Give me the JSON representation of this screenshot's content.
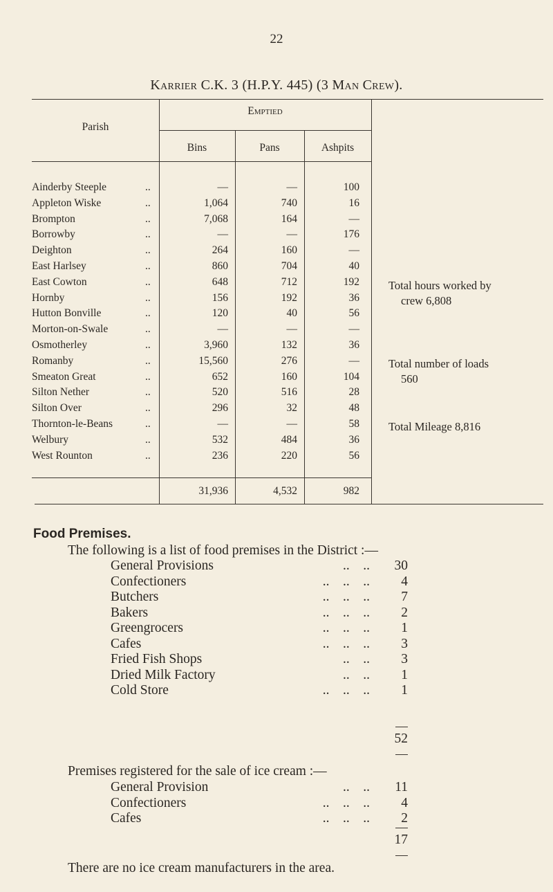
{
  "page_number": "22",
  "title": "Karrier C.K. 3 (H.P.Y. 445) (3 Man Crew).",
  "table": {
    "headers": {
      "parish": "Parish",
      "emptied": "Emptied",
      "bins": "Bins",
      "pans": "Pans",
      "ashpits": "Ashpits"
    },
    "rows": [
      {
        "parish": "Ainderby Steeple",
        "bins": "—",
        "pans": "—",
        "ashpits": "100"
      },
      {
        "parish": "Appleton Wiske",
        "bins": "1,064",
        "pans": "740",
        "ashpits": "16"
      },
      {
        "parish": "Brompton",
        "bins": "7,068",
        "pans": "164",
        "ashpits": "—"
      },
      {
        "parish": "Borrowby",
        "bins": "—",
        "pans": "—",
        "ashpits": "176"
      },
      {
        "parish": "Deighton",
        "bins": "264",
        "pans": "160",
        "ashpits": "—"
      },
      {
        "parish": "East Harlsey",
        "bins": "860",
        "pans": "704",
        "ashpits": "40"
      },
      {
        "parish": "East Cowton",
        "bins": "648",
        "pans": "712",
        "ashpits": "192"
      },
      {
        "parish": "Hornby",
        "bins": "156",
        "pans": "192",
        "ashpits": "36"
      },
      {
        "parish": "Hutton Bonville",
        "bins": "120",
        "pans": "40",
        "ashpits": "56"
      },
      {
        "parish": "Morton-on-Swale",
        "bins": "—",
        "pans": "—",
        "ashpits": "—"
      },
      {
        "parish": "Osmotherley",
        "bins": "3,960",
        "pans": "132",
        "ashpits": "36"
      },
      {
        "parish": "Romanby",
        "bins": "15,560",
        "pans": "276",
        "ashpits": "—"
      },
      {
        "parish": "Smeaton Great",
        "bins": "652",
        "pans": "160",
        "ashpits": "104"
      },
      {
        "parish": "Silton Nether",
        "bins": "520",
        "pans": "516",
        "ashpits": "28"
      },
      {
        "parish": "Silton Over",
        "bins": "296",
        "pans": "32",
        "ashpits": "48"
      },
      {
        "parish": "Thornton-le-Beans",
        "bins": "—",
        "pans": "—",
        "ashpits": "58"
      },
      {
        "parish": "Welbury",
        "bins": "532",
        "pans": "484",
        "ashpits": "36"
      },
      {
        "parish": "West Rounton",
        "bins": "236",
        "pans": "220",
        "ashpits": "56"
      }
    ],
    "leader": "..",
    "totals": {
      "bins": "31,936",
      "pans": "4,532",
      "ashpits": "982"
    },
    "notes": [
      {
        "line1": "Total hours worked by",
        "line2": "crew 6,808"
      },
      {
        "line1": "Total number of loads",
        "line2": "560"
      },
      {
        "line1": "Total Mileage 8,816",
        "line2": ""
      }
    ]
  },
  "food_premises": {
    "heading": "Food Premises.",
    "intro": "The following is a list of food premises in the District :—",
    "items": [
      {
        "name": "General Provisions",
        "dots": "..    ..",
        "count": "30"
      },
      {
        "name": "Confectioners",
        "dots": "..    ..    ..",
        "count": "4"
      },
      {
        "name": "Butchers",
        "dots": "..    ..    ..",
        "count": "7"
      },
      {
        "name": "Bakers",
        "dots": "..    ..    ..",
        "count": "2"
      },
      {
        "name": "Greengrocers",
        "dots": "..    ..    ..",
        "count": "1"
      },
      {
        "name": "Cafes",
        "dots": "..    ..    ..",
        "count": "3"
      },
      {
        "name": "Fried Fish Shops",
        "dots": "..    ..",
        "count": "3"
      },
      {
        "name": "Dried Milk Factory",
        "dots": "..    ..",
        "count": "1"
      },
      {
        "name": "Cold Store",
        "dots": "..    ..    ..",
        "count": "1"
      }
    ],
    "total": "52",
    "ice_cream_intro": "Premises registered for the sale of ice cream :—",
    "ice_cream_items": [
      {
        "name": "General Provision",
        "dots": "..    ..",
        "count": "11"
      },
      {
        "name": "Confectioners",
        "dots": "..    ..    ..",
        "count": "4"
      },
      {
        "name": "Cafes",
        "dots": "..    ..    ..",
        "count": "2"
      }
    ],
    "ice_cream_total": "17",
    "footer": "There are no ice cream manufacturers in the area."
  }
}
